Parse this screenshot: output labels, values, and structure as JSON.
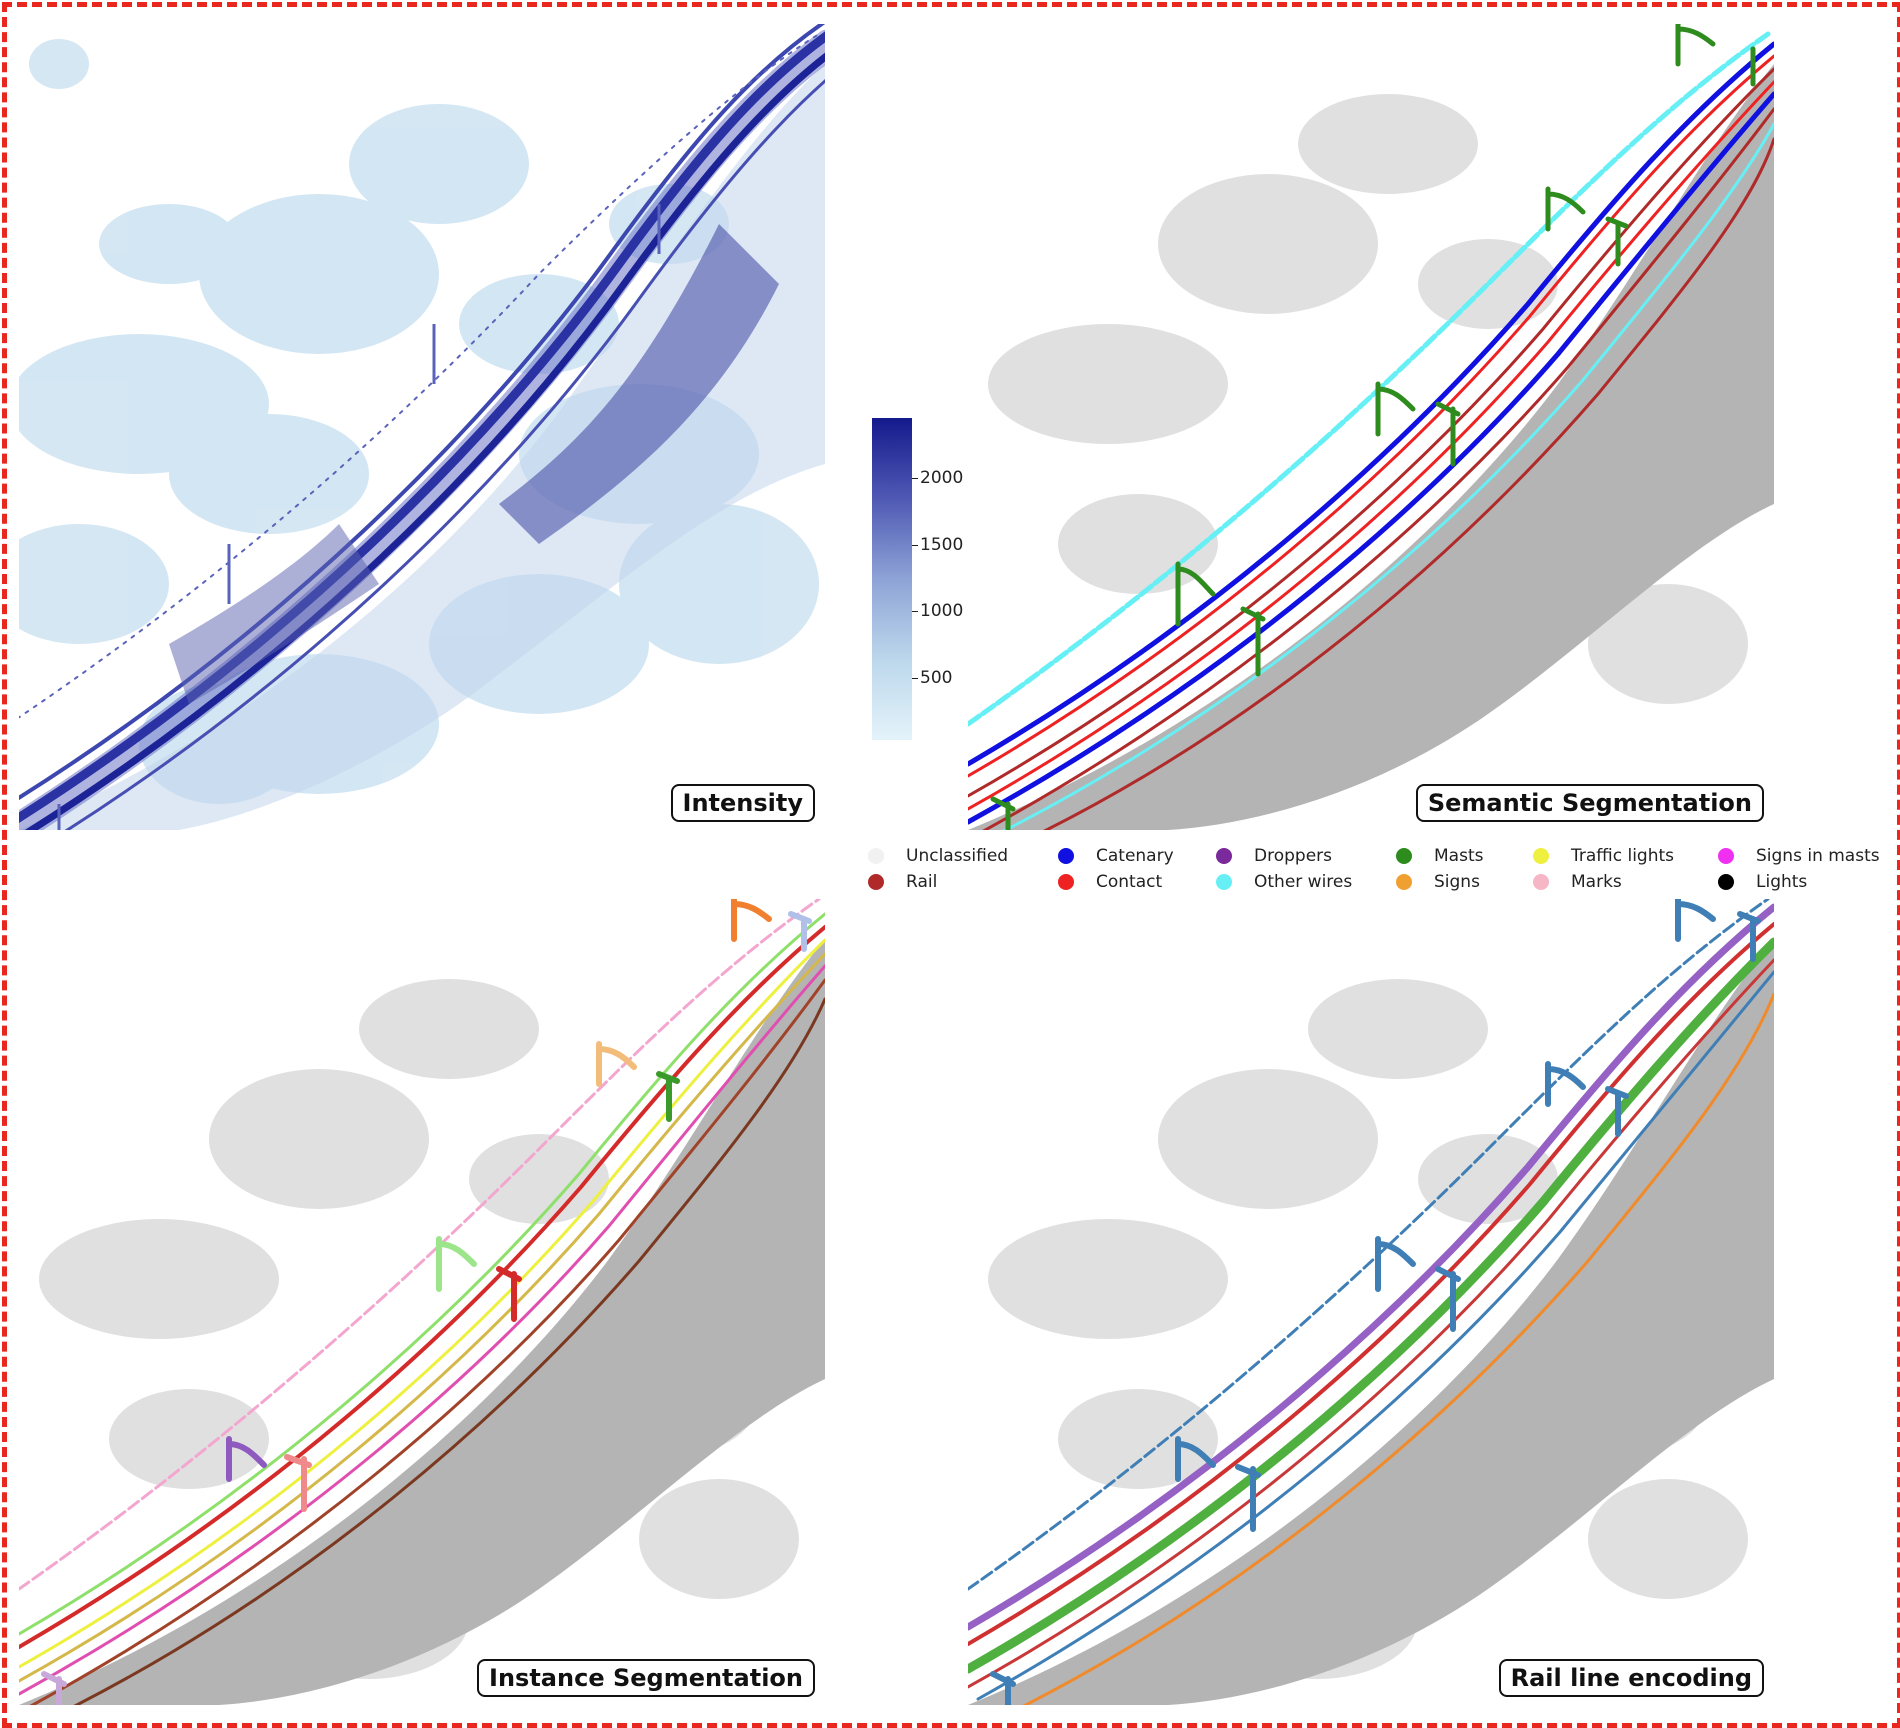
{
  "panels": {
    "intensity": {
      "label": "Intensity"
    },
    "semantic": {
      "label": "Semantic Segmentation"
    },
    "instance": {
      "label": "Instance Segmentation"
    },
    "rail": {
      "label": "Rail line encoding"
    }
  },
  "colorbar": {
    "ticks": [
      "2000",
      "1500",
      "1000",
      "500"
    ],
    "low_color": "#e4f3fa",
    "high_color": "#141a8c"
  },
  "legend": {
    "items": [
      {
        "label": "Unclassified",
        "color": "#f1f1f1"
      },
      {
        "label": "Rail",
        "color": "#b02a2a"
      },
      {
        "label": "Catenary",
        "color": "#1010e0"
      },
      {
        "label": "Contact",
        "color": "#ee2222"
      },
      {
        "label": "Droppers",
        "color": "#7a2a9a"
      },
      {
        "label": "Other wires",
        "color": "#66f0f5"
      },
      {
        "label": "Masts",
        "color": "#2e8b1e"
      },
      {
        "label": "Signs",
        "color": "#f0a030"
      },
      {
        "label": "Traffic lights",
        "color": "#eef040"
      },
      {
        "label": "Marks",
        "color": "#f6b6c6"
      },
      {
        "label": "Signs in masts",
        "color": "#f030f0"
      },
      {
        "label": "Lights",
        "color": "#000000"
      }
    ]
  }
}
